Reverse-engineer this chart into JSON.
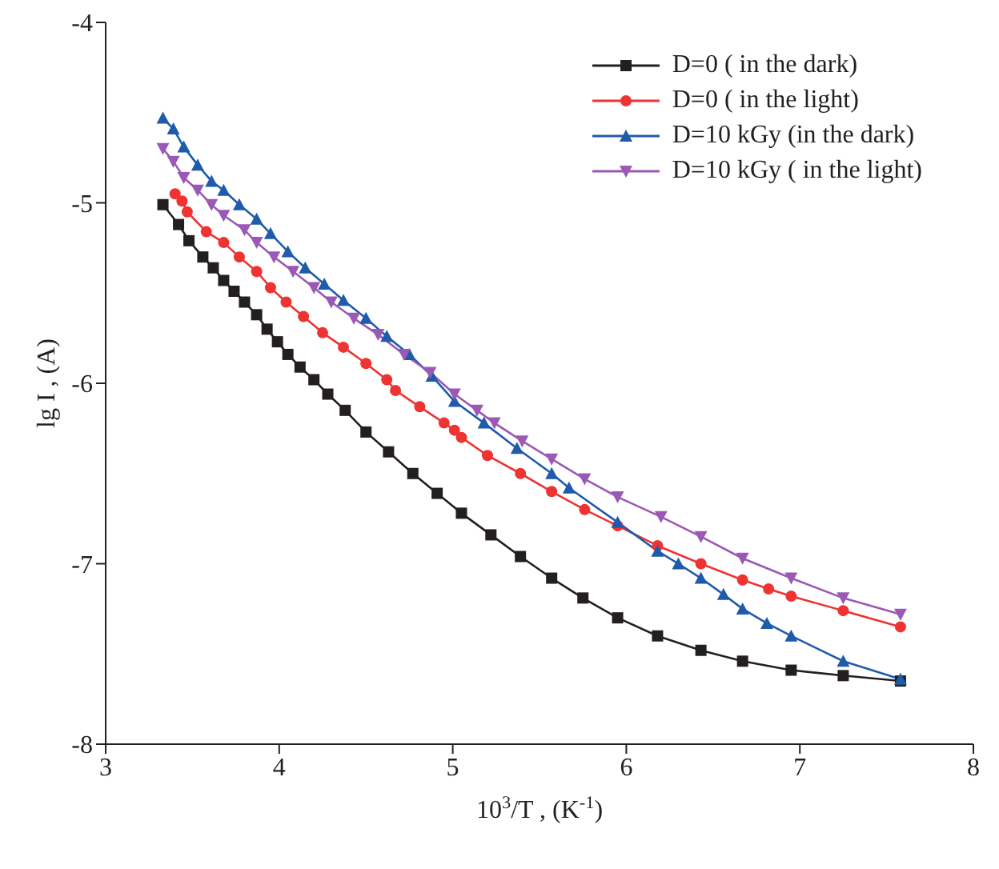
{
  "chart_data": {
    "type": "line",
    "xlabel": "10$^{3}$/T , (K$^{-1}$)",
    "ylabel": "lg I , (A)",
    "xlim": [
      3,
      8
    ],
    "xticks": [
      3,
      4,
      5,
      6,
      7,
      8
    ],
    "ylim": [
      -8,
      -4
    ],
    "yticks": [
      -8,
      -7,
      -6,
      -5,
      -4
    ],
    "grid": false,
    "legend": "top right",
    "line_style": "solid",
    "series": [
      {
        "name": "D=0 ( in the dark)",
        "color": "#231f20",
        "marker": "square",
        "x": [
          3.33,
          3.42,
          3.48,
          3.56,
          3.62,
          3.68,
          3.74,
          3.8,
          3.87,
          3.93,
          3.99,
          4.05,
          4.12,
          4.2,
          4.28,
          4.38,
          4.5,
          4.63,
          4.77,
          4.91,
          5.05,
          5.22,
          5.39,
          5.57,
          5.75,
          5.95,
          6.18,
          6.43,
          6.67,
          6.95,
          7.25,
          7.58
        ],
        "values": [
          -5.01,
          -5.12,
          -5.21,
          -5.3,
          -5.36,
          -5.43,
          -5.49,
          -5.55,
          -5.62,
          -5.7,
          -5.77,
          -5.84,
          -5.91,
          -5.98,
          -6.06,
          -6.15,
          -6.27,
          -6.38,
          -6.5,
          -6.61,
          -6.72,
          -6.84,
          -6.96,
          -7.08,
          -7.19,
          -7.3,
          -7.4,
          -7.48,
          -7.54,
          -7.59,
          -7.62,
          -7.65
        ]
      },
      {
        "name": "D=0 ( in the light)",
        "color": "#ee3333",
        "marker": "circle",
        "x": [
          3.4,
          3.44,
          3.47,
          3.58,
          3.68,
          3.77,
          3.87,
          3.95,
          4.04,
          4.14,
          4.25,
          4.37,
          4.5,
          4.62,
          4.67,
          4.81,
          4.95,
          5.01,
          5.05,
          5.2,
          5.39,
          5.57,
          5.76,
          5.95,
          6.18,
          6.43,
          6.67,
          6.82,
          6.95,
          7.25,
          7.58
        ],
        "values": [
          -4.95,
          -4.99,
          -5.05,
          -5.16,
          -5.22,
          -5.3,
          -5.38,
          -5.47,
          -5.55,
          -5.63,
          -5.72,
          -5.8,
          -5.89,
          -5.98,
          -6.04,
          -6.13,
          -6.22,
          -6.26,
          -6.3,
          -6.4,
          -6.5,
          -6.6,
          -6.7,
          -6.79,
          -6.9,
          -7.0,
          -7.09,
          -7.14,
          -7.18,
          -7.26,
          -7.35
        ]
      },
      {
        "name": "D=10 kGy (in the dark)",
        "color": "#1f5bab",
        "marker": "triangle",
        "x": [
          3.33,
          3.39,
          3.45,
          3.53,
          3.61,
          3.68,
          3.77,
          3.87,
          3.95,
          4.05,
          4.15,
          4.26,
          4.37,
          4.5,
          4.62,
          4.75,
          4.88,
          5.01,
          5.18,
          5.37,
          5.57,
          5.67,
          5.95,
          6.18,
          6.3,
          6.43,
          6.56,
          6.67,
          6.81,
          6.95,
          7.25,
          7.58
        ],
        "values": [
          -4.53,
          -4.59,
          -4.69,
          -4.79,
          -4.88,
          -4.93,
          -5.01,
          -5.09,
          -5.17,
          -5.27,
          -5.36,
          -5.45,
          -5.54,
          -5.64,
          -5.74,
          -5.84,
          -5.96,
          -6.1,
          -6.22,
          -6.36,
          -6.5,
          -6.58,
          -6.77,
          -6.93,
          -7.0,
          -7.08,
          -7.17,
          -7.25,
          -7.33,
          -7.4,
          -7.54,
          -7.64
        ]
      },
      {
        "name": "D=10 kGy ( in the light)",
        "color": "#9b59b6",
        "marker": "triangle-down",
        "x": [
          3.33,
          3.39,
          3.45,
          3.53,
          3.61,
          3.68,
          3.8,
          3.87,
          3.97,
          4.08,
          4.2,
          4.3,
          4.43,
          4.57,
          4.72,
          4.87,
          5.01,
          5.14,
          5.24,
          5.4,
          5.57,
          5.76,
          5.95,
          6.2,
          6.43,
          6.67,
          6.95,
          7.25,
          7.58
        ],
        "values": [
          -4.7,
          -4.77,
          -4.86,
          -4.93,
          -5.01,
          -5.07,
          -5.15,
          -5.22,
          -5.3,
          -5.38,
          -5.47,
          -5.55,
          -5.64,
          -5.73,
          -5.84,
          -5.94,
          -6.06,
          -6.15,
          -6.22,
          -6.32,
          -6.42,
          -6.53,
          -6.63,
          -6.74,
          -6.85,
          -6.97,
          -7.08,
          -7.19,
          -7.28
        ]
      }
    ]
  }
}
